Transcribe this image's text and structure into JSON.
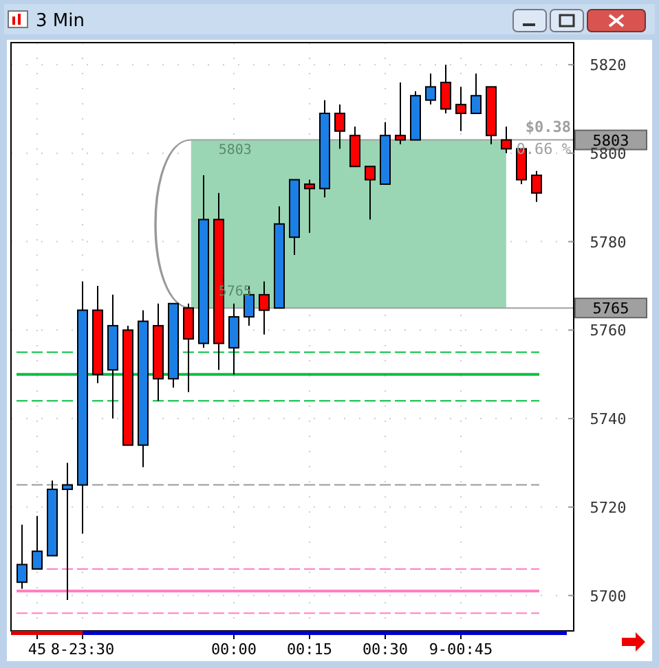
{
  "chart_data": {
    "type": "candlestick",
    "title": "3 Min",
    "categories": [
      null,
      "45",
      null,
      null,
      "8-23:30",
      null,
      null,
      null,
      null,
      null,
      null,
      null,
      null,
      null,
      "00:00",
      null,
      null,
      null,
      null,
      "00:15",
      null,
      null,
      null,
      null,
      "00:30",
      null,
      null,
      null,
      null,
      "9-00:45",
      null,
      null,
      null,
      null,
      null
    ],
    "ohlc": [
      [
        5703,
        5716,
        5701.5,
        5707
      ],
      [
        5706,
        5718,
        5706,
        5710
      ],
      [
        5709,
        5726,
        5709,
        5724
      ],
      [
        5724,
        5730,
        5699,
        5725
      ],
      [
        5725,
        5771,
        5714,
        5764.5
      ],
      [
        5764.5,
        5770,
        5748,
        5750
      ],
      [
        5751,
        5768,
        5740,
        5761
      ],
      [
        5760,
        5761,
        5734,
        5734
      ],
      [
        5734,
        5764.5,
        5729,
        5762
      ],
      [
        5761,
        5766,
        5744,
        5749
      ],
      [
        5749,
        5766,
        5747,
        5766
      ],
      [
        5765,
        5766,
        5746,
        5758
      ],
      [
        5757,
        5795,
        5756,
        5785
      ],
      [
        5785,
        5791,
        5751,
        5757
      ],
      [
        5756,
        5766,
        5750,
        5763
      ],
      [
        5763,
        5770,
        5761,
        5768
      ],
      [
        5768,
        5771,
        5759,
        5764.5
      ],
      [
        5765,
        5788,
        5765,
        5784
      ],
      [
        5781,
        5794,
        5777,
        5794
      ],
      [
        5793,
        5794,
        5782,
        5792
      ],
      [
        5792,
        5812,
        5790,
        5809
      ],
      [
        5809,
        5811,
        5801,
        5805
      ],
      [
        5804,
        5806,
        5797,
        5797
      ],
      [
        5797,
        5797,
        5785,
        5794
      ],
      [
        5793,
        5807,
        5793,
        5804
      ],
      [
        5804,
        5816,
        5802,
        5803
      ],
      [
        5803,
        5814,
        5803,
        5813
      ],
      [
        5812,
        5818,
        5811,
        5815
      ],
      [
        5816,
        5820,
        5809,
        5810
      ],
      [
        5811,
        5815,
        5805,
        5809
      ],
      [
        5809,
        5818,
        5809,
        5813
      ],
      [
        5815,
        5815,
        5802,
        5804
      ],
      [
        5803,
        5806,
        5800,
        5801
      ],
      [
        5801,
        5801,
        5793,
        5794
      ],
      [
        5795,
        5796,
        5789,
        5791
      ]
    ],
    "colors": [
      "#1c7fe6",
      "#1c7fe6",
      "#1c7fe6",
      "#1c7fe6",
      "#1c7fe6",
      "#ff0000",
      "#1c7fe6",
      "#ff0000",
      "#1c7fe6",
      "#ff0000",
      "#1c7fe6",
      "#ff0000",
      "#1c7fe6",
      "#ff0000",
      "#1c7fe6",
      "#1c7fe6",
      "#ff0000",
      "#1c7fe6",
      "#1c7fe6",
      "#ff0000",
      "#1c7fe6",
      "#ff0000",
      "#ff0000",
      "#ff0000",
      "#1c7fe6",
      "#ff0000",
      "#1c7fe6",
      "#1c7fe6",
      "#ff0000",
      "#ff0000",
      "#1c7fe6",
      "#ff0000",
      "#ff0000",
      "#ff0000",
      "#ff0000"
    ],
    "ylim": [
      5692,
      5825
    ],
    "yticks": [
      5700,
      5720,
      5740,
      5760,
      5780,
      5800,
      5820
    ],
    "grid": true,
    "ref_lines": [
      {
        "axis": "y",
        "value": 5755,
        "color": "#00c040",
        "line_style": "dashed"
      },
      {
        "axis": "y",
        "value": 5750,
        "color": "#00c040",
        "line_style": "solid"
      },
      {
        "axis": "y",
        "value": 5744,
        "color": "#00c040",
        "line_style": "dashed"
      },
      {
        "axis": "y",
        "value": 5725,
        "color": "#999999",
        "line_style": "dashed"
      },
      {
        "axis": "y",
        "value": 5706,
        "color": "#ff80c0",
        "line_style": "dashed"
      },
      {
        "axis": "y",
        "value": 5701,
        "color": "#ff80c0",
        "line_style": "solid"
      },
      {
        "axis": "y",
        "value": 5696,
        "color": "#ff80c0",
        "line_style": "dashed"
      },
      {
        "axis": "y",
        "value": 5803,
        "color": "#a0a0a0",
        "line_style": "solid",
        "label": "5803"
      },
      {
        "axis": "y",
        "value": 5765,
        "color": "#a0a0a0",
        "line_style": "solid",
        "label": "5765"
      }
    ],
    "bands": [
      {
        "axis": "y",
        "from": 5765,
        "to": 5803,
        "color": "#9ad6b4"
      }
    ],
    "annotations": [
      {
        "text": "5803",
        "y": 5803
      },
      {
        "text": "5765",
        "y": 5765
      },
      "$0.38",
      "0.66 %"
    ]
  }
}
